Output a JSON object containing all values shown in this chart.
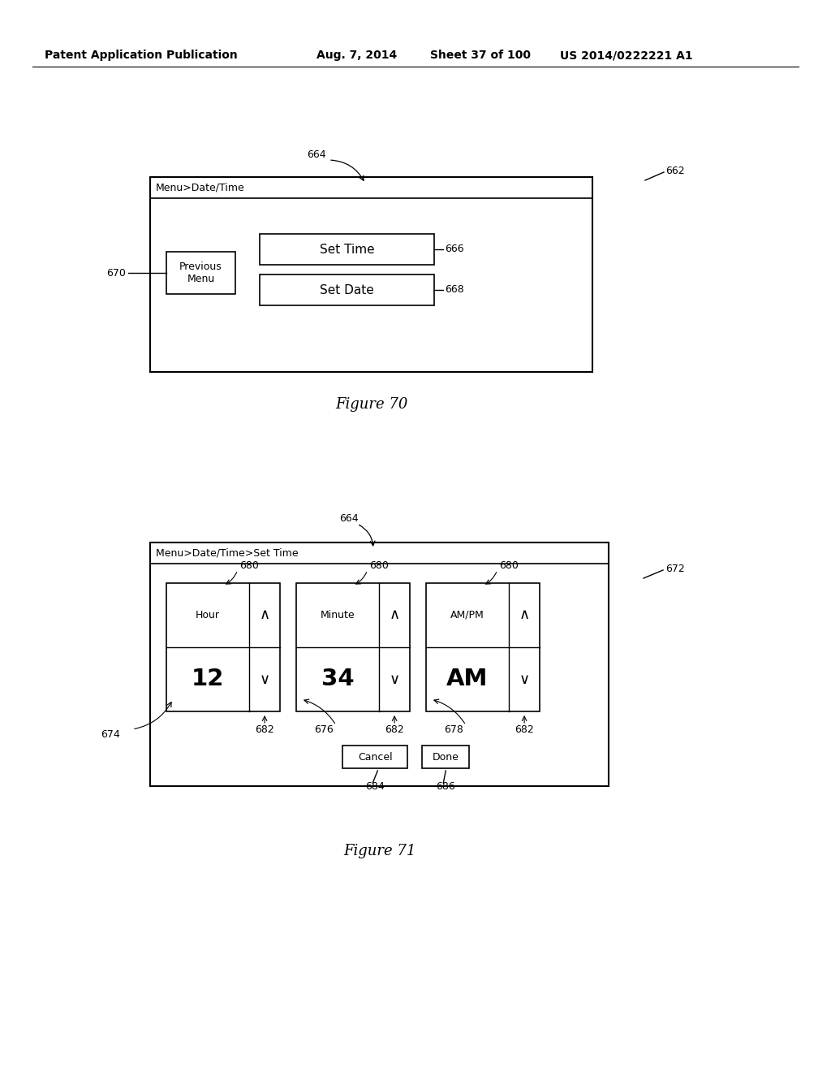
{
  "bg_color": "#ffffff",
  "header_text": "Patent Application Publication",
  "header_date": "Aug. 7, 2014",
  "header_sheet": "Sheet 37 of 100",
  "header_patent": "US 2014/0222221 A1",
  "fig70": {
    "title": "Figure 70",
    "screen_label": "Menu>Date/Time",
    "screen_ref": "664",
    "outer_ref": "662",
    "prev_menu_label": "Previous\nMenu",
    "prev_menu_ref": "670",
    "set_time_label": "Set Time",
    "set_time_ref": "666",
    "set_date_label": "Set Date",
    "set_date_ref": "668"
  },
  "fig71": {
    "title": "Figure 71",
    "screen_label": "Menu>Date/Time>Set Time",
    "screen_ref": "664",
    "outer_ref": "672",
    "col1_label": "Hour",
    "col1_value": "12",
    "col1_ref": "674",
    "col2_label": "Minute",
    "col2_value": "34",
    "col2_ref": "676",
    "col3_label": "AM/PM",
    "col3_value": "AM",
    "col3_ref": "678",
    "spinner_ref": "680",
    "arrow_ref": "682",
    "cancel_label": "Cancel",
    "cancel_ref": "684",
    "done_label": "Done",
    "done_ref": "686"
  }
}
